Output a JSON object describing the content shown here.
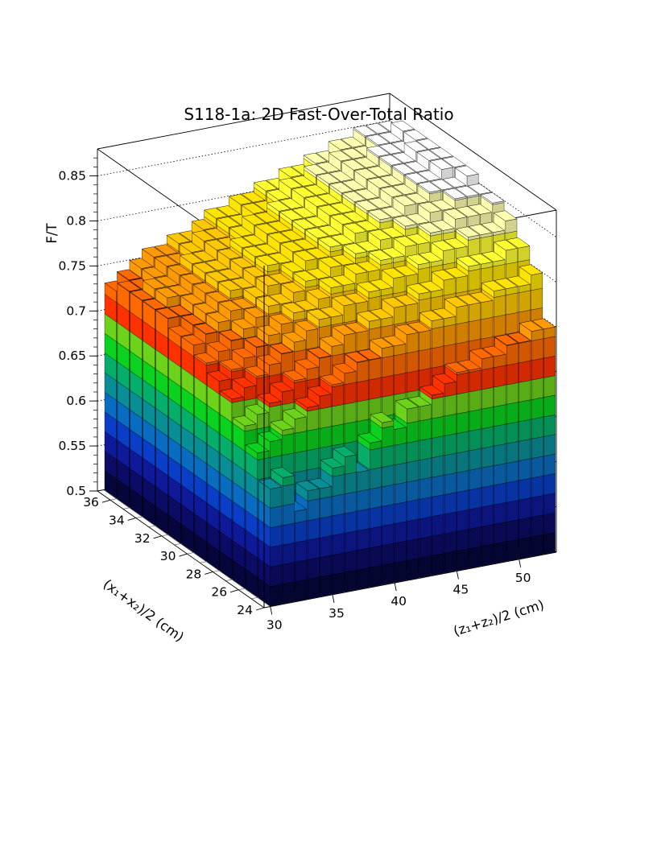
{
  "chart_data": {
    "type": "lego3d",
    "title": "S118-1a: 2D Fast-Over-Total Ratio",
    "xlabel": "(x₁+x₂)/2 (cm)",
    "ylabel": "(z₁+z₂)/2 (cm)",
    "zlabel": "F/T",
    "x_ticks": [
      "24",
      "26",
      "28",
      "30",
      "32",
      "34",
      "36"
    ],
    "y_ticks": [
      "30",
      "35",
      "40",
      "45",
      "50"
    ],
    "z_ticks": [
      "0.5",
      "0.55",
      "0.6",
      "0.65",
      "0.7",
      "0.75",
      "0.8",
      "0.85"
    ],
    "xlim": [
      24,
      37
    ],
    "ylim": [
      29.5,
      53
    ],
    "zlim": [
      0.5,
      0.88
    ],
    "x_bins": [
      24,
      25,
      26,
      27,
      28,
      29,
      30,
      31,
      32,
      33,
      34,
      35,
      36
    ],
    "y_bins": [
      30,
      31,
      32,
      33,
      34,
      35,
      36,
      37,
      38,
      39,
      40,
      41,
      42,
      43,
      44,
      45,
      46,
      47,
      48,
      49,
      50,
      51,
      52
    ],
    "heights": [
      [
        0.63,
        0.64,
        0.6,
        0.62,
        0.62,
        0.64,
        0.65,
        0.63,
        0.66,
        0.68,
        0.67,
        0.69,
        0.69,
        0.7,
        0.71,
        0.72,
        0.72,
        0.73,
        0.73,
        0.74,
        0.74,
        0.75,
        0.75
      ],
      [
        0.66,
        0.67,
        0.68,
        0.69,
        0.7,
        0.71,
        0.72,
        0.73,
        0.74,
        0.74,
        0.75,
        0.75,
        0.76,
        0.76,
        0.77,
        0.77,
        0.78,
        0.78,
        0.78,
        0.79,
        0.79,
        0.79,
        0.8
      ],
      [
        0.68,
        0.69,
        0.7,
        0.71,
        0.72,
        0.73,
        0.74,
        0.75,
        0.76,
        0.76,
        0.77,
        0.77,
        0.78,
        0.78,
        0.79,
        0.79,
        0.8,
        0.8,
        0.81,
        0.81,
        0.81,
        0.82,
        0.82
      ],
      [
        0.7,
        0.71,
        0.72,
        0.73,
        0.74,
        0.75,
        0.76,
        0.77,
        0.77,
        0.78,
        0.78,
        0.79,
        0.79,
        0.8,
        0.8,
        0.81,
        0.81,
        0.82,
        0.82,
        0.83,
        0.83,
        0.83,
        0.84
      ],
      [
        0.71,
        0.72,
        0.73,
        0.74,
        0.75,
        0.76,
        0.77,
        0.77,
        0.78,
        0.79,
        0.79,
        0.8,
        0.8,
        0.81,
        0.81,
        0.82,
        0.82,
        0.83,
        0.83,
        0.84,
        0.84,
        0.84,
        0.85
      ],
      [
        0.72,
        0.73,
        0.74,
        0.75,
        0.76,
        0.77,
        0.77,
        0.78,
        0.79,
        0.79,
        0.8,
        0.8,
        0.81,
        0.81,
        0.82,
        0.82,
        0.83,
        0.83,
        0.84,
        0.84,
        0.85,
        0.85,
        0.85
      ],
      [
        0.73,
        0.74,
        0.75,
        0.76,
        0.76,
        0.77,
        0.78,
        0.78,
        0.79,
        0.8,
        0.8,
        0.81,
        0.81,
        0.82,
        0.82,
        0.83,
        0.83,
        0.84,
        0.84,
        0.85,
        0.85,
        0.85,
        0.86
      ],
      [
        0.73,
        0.74,
        0.75,
        0.76,
        0.77,
        0.77,
        0.78,
        0.79,
        0.79,
        0.8,
        0.8,
        0.81,
        0.81,
        0.82,
        0.82,
        0.83,
        0.83,
        0.84,
        0.84,
        0.85,
        0.85,
        0.86,
        0.86
      ],
      [
        0.74,
        0.74,
        0.75,
        0.76,
        0.77,
        0.77,
        0.78,
        0.79,
        0.79,
        0.8,
        0.8,
        0.81,
        0.81,
        0.82,
        0.82,
        0.83,
        0.83,
        0.84,
        0.84,
        0.85,
        0.85,
        0.86,
        0.86
      ],
      [
        0.74,
        0.75,
        0.75,
        0.76,
        0.77,
        0.77,
        0.78,
        0.79,
        0.79,
        0.8,
        0.8,
        0.81,
        0.81,
        0.82,
        0.82,
        0.83,
        0.83,
        0.84,
        0.84,
        0.85,
        0.85,
        0.86,
        0.86
      ],
      [
        0.74,
        0.75,
        0.75,
        0.76,
        0.77,
        0.77,
        0.78,
        0.78,
        0.79,
        0.8,
        0.8,
        0.81,
        0.81,
        0.82,
        0.82,
        0.83,
        0.83,
        0.84,
        0.84,
        0.85,
        0.85,
        0.85,
        0.86
      ],
      [
        0.74,
        0.74,
        0.75,
        0.76,
        0.76,
        0.77,
        0.78,
        0.78,
        0.79,
        0.79,
        0.8,
        0.8,
        0.81,
        0.82,
        0.82,
        0.83,
        0.83,
        0.84,
        0.84,
        0.84,
        0.85,
        0.85,
        0.86
      ],
      [
        0.73,
        0.74,
        0.75,
        0.76,
        0.76,
        0.77,
        0.77,
        0.78,
        0.79,
        0.79,
        0.8,
        0.8,
        0.81,
        0.81,
        0.82,
        0.82,
        0.83,
        0.83,
        0.84,
        0.84,
        0.85,
        0.85,
        0.85
      ]
    ],
    "color_scale": [
      "#06063c",
      "#0c0c66",
      "#0f1a9a",
      "#0a3ec6",
      "#0a6cc0",
      "#0a8e96",
      "#05ae6a",
      "#0ad21e",
      "#6cd21a",
      "#ff3200",
      "#ff6a00",
      "#ff9a00",
      "#ffc800",
      "#ffe400",
      "#ffff32",
      "#ffffb0",
      "#ffffff"
    ],
    "grid": true
  }
}
